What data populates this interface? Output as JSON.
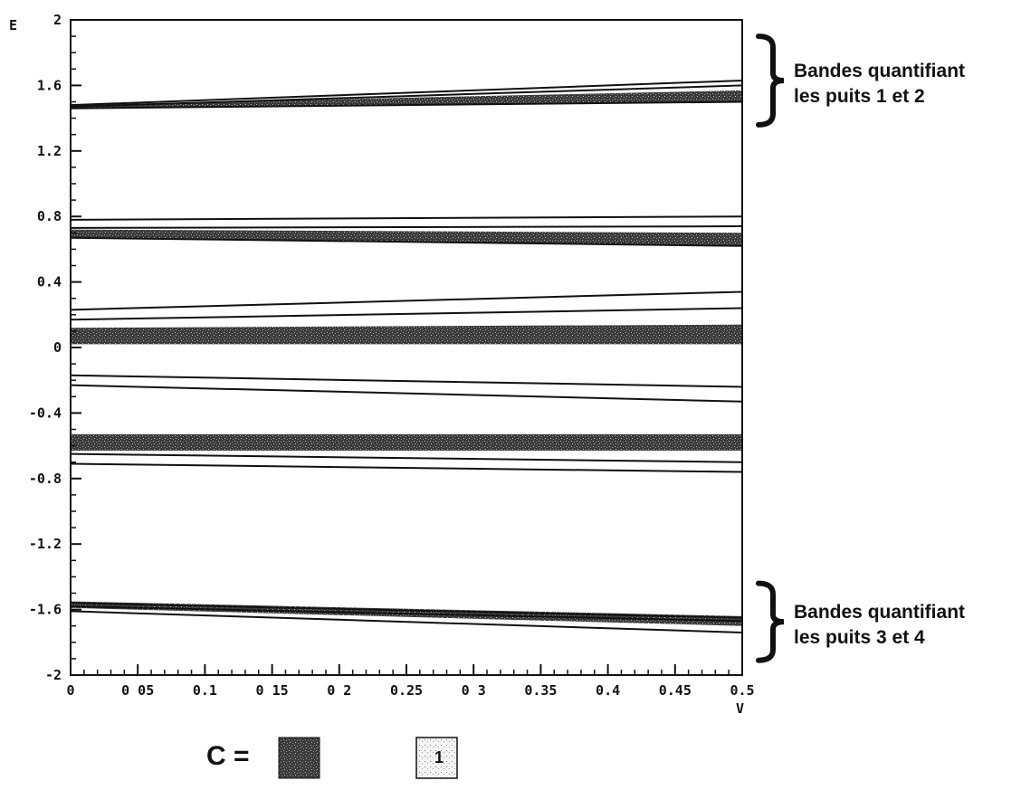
{
  "chart_data": {
    "type": "line",
    "xlabel": "V",
    "ylabel": "E",
    "xlim": [
      0,
      0.5
    ],
    "ylim": [
      -2,
      2
    ],
    "x_ticks": [
      "0",
      "0 05",
      "0.1",
      "0 15",
      "0 2",
      "0.25",
      "0 3",
      "0.35",
      "0.4",
      "0.45",
      "0.5"
    ],
    "y_ticks": [
      "2",
      "1.6",
      "1.2",
      "0.8",
      "0.4",
      "0",
      "-0.4",
      "-0.8",
      "-1.2",
      "-1.6",
      "-2"
    ],
    "grid": false,
    "lines": [
      {
        "x": [
          0,
          0.5
        ],
        "y": [
          1.48,
          1.63
        ]
      },
      {
        "x": [
          0,
          0.5
        ],
        "y": [
          1.47,
          1.6
        ]
      },
      {
        "x": [
          0,
          0.5
        ],
        "y": [
          1.46,
          1.5
        ]
      },
      {
        "x": [
          0,
          0.5
        ],
        "y": [
          0.78,
          0.8
        ]
      },
      {
        "x": [
          0,
          0.5
        ],
        "y": [
          0.73,
          0.74
        ]
      },
      {
        "x": [
          0,
          0.5
        ],
        "y": [
          0.67,
          0.62
        ]
      },
      {
        "x": [
          0,
          0.5
        ],
        "y": [
          0.23,
          0.34
        ]
      },
      {
        "x": [
          0,
          0.5
        ],
        "y": [
          0.17,
          0.24
        ]
      },
      {
        "x": [
          0,
          0.5
        ],
        "y": [
          -0.17,
          -0.24
        ]
      },
      {
        "x": [
          0,
          0.5
        ],
        "y": [
          -0.23,
          -0.33
        ]
      },
      {
        "x": [
          0,
          0.5
        ],
        "y": [
          -0.65,
          -0.7
        ]
      },
      {
        "x": [
          0,
          0.5
        ],
        "y": [
          -0.71,
          -0.76
        ]
      },
      {
        "x": [
          0,
          0.5
        ],
        "y": [
          -1.56,
          -1.65
        ]
      },
      {
        "x": [
          0,
          0.5
        ],
        "y": [
          -1.58,
          -1.67
        ]
      },
      {
        "x": [
          0,
          0.5
        ],
        "y": [
          -1.61,
          -1.74
        ]
      }
    ],
    "bands": [
      {
        "x": [
          0,
          0.5
        ],
        "lower": [
          1.46,
          1.5
        ],
        "upper": [
          1.48,
          1.57
        ],
        "shade": "dark"
      },
      {
        "x": [
          0,
          0.5
        ],
        "lower": [
          0.67,
          0.62
        ],
        "upper": [
          0.72,
          0.7
        ],
        "shade": "dark"
      },
      {
        "x": [
          0,
          0.5
        ],
        "lower": [
          0.02,
          0.02
        ],
        "upper": [
          0.12,
          0.14
        ],
        "shade": "dark"
      },
      {
        "x": [
          0,
          0.5
        ],
        "lower": [
          -0.63,
          -0.63
        ],
        "upper": [
          -0.53,
          -0.53
        ],
        "shade": "dark"
      },
      {
        "x": [
          0,
          0.5
        ],
        "lower": [
          -1.59,
          -1.7
        ],
        "upper": [
          -1.55,
          -1.64
        ],
        "shade": "dark"
      }
    ],
    "annotations": [
      {
        "lines": [
          "Bandes quantifiant",
          "les puits 1 et 2"
        ],
        "ybrace": [
          1.36,
          1.9
        ]
      },
      {
        "lines": [
          "Bandes quantifiant",
          "les puits 3 et 4"
        ],
        "ybrace": [
          -1.91,
          -1.44
        ]
      }
    ],
    "legend": {
      "label": "C =",
      "second": "1"
    }
  },
  "colors": {
    "axis": "#111111",
    "band_dark": "#3a3a3a",
    "band_light": "#c8c8c8"
  }
}
